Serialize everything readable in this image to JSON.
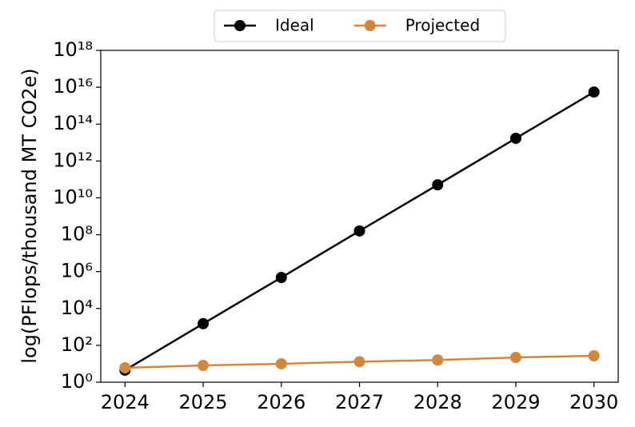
{
  "chart_data": {
    "type": "line",
    "y_label": "log(PFlops/thousand MT CO2e)",
    "x": [
      2024,
      2025,
      2026,
      2027,
      2028,
      2029,
      2030
    ],
    "series": [
      {
        "name": "Ideal",
        "color": "#000000",
        "values": [
          4.5,
          1500,
          480000,
          160000000,
          51000000000,
          17000000000000,
          5500000000000000
        ]
      },
      {
        "name": "Projected",
        "color": "#d0883f",
        "values": [
          6,
          8.1,
          10,
          13,
          16,
          22,
          27
        ]
      }
    ],
    "xlim": [
      2023.69,
      2030.31
    ],
    "xticks": [
      2024,
      2025,
      2026,
      2027,
      2028,
      2029,
      2030
    ],
    "ylim": [
      1,
      1e+18
    ],
    "log_y": true,
    "yticks": [
      {
        "value": 1,
        "label": "10⁰"
      },
      {
        "value": 100,
        "label": "10²"
      },
      {
        "value": 10000,
        "label": "10⁴"
      },
      {
        "value": 1000000,
        "label": "10⁶"
      },
      {
        "value": 100000000,
        "label": "10⁸"
      },
      {
        "value": 10000000000,
        "label": "10¹⁰"
      },
      {
        "value": 1000000000000,
        "label": "10¹²"
      },
      {
        "value": 100000000000000,
        "label": "10¹⁴"
      },
      {
        "value": 10000000000000000,
        "label": "10¹⁶"
      },
      {
        "value": 1000000000000000000,
        "label": "10¹⁸"
      }
    ],
    "grid": false,
    "legend_position": "top"
  }
}
